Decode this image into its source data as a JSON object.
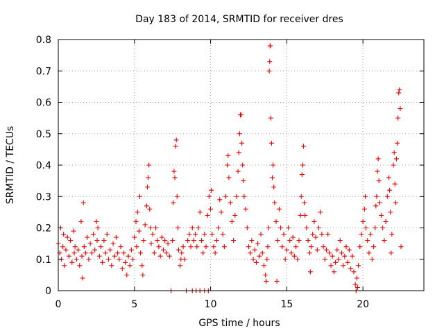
{
  "chart_data": {
    "type": "scatter",
    "title": "Day 183 of 2014, SRMTID for receiver dres",
    "xlabel": "GPS time / hours",
    "ylabel": "SRMTID / TECUs",
    "xlim": [
      0,
      24
    ],
    "ylim": [
      0,
      0.8
    ],
    "xticks": [
      0,
      5,
      10,
      15,
      20
    ],
    "xtick_labels": [
      "0",
      "5",
      "10",
      "15",
      "20"
    ],
    "yticks": [
      0,
      0.1,
      0.2,
      0.3,
      0.4,
      0.5,
      0.6,
      0.7,
      0.8
    ],
    "ytick_labels": [
      "0",
      "0.1",
      "0.2",
      "0.3",
      "0.4",
      "0.5",
      "0.6",
      "0.7",
      "0.8"
    ],
    "grid": true,
    "marker": "+",
    "color": "#e00000",
    "series": [
      {
        "name": "SRMTID",
        "points": [
          [
            0.0,
            0.15
          ],
          [
            0.1,
            0.12
          ],
          [
            0.15,
            0.2
          ],
          [
            0.2,
            0.1
          ],
          [
            0.3,
            0.14
          ],
          [
            0.35,
            0.18
          ],
          [
            0.4,
            0.08
          ],
          [
            0.5,
            0.13
          ],
          [
            0.6,
            0.17
          ],
          [
            0.7,
            0.11
          ],
          [
            0.8,
            0.16
          ],
          [
            0.9,
            0.09
          ],
          [
            1.0,
            0.19
          ],
          [
            1.05,
            0.12
          ],
          [
            1.1,
            0.14
          ],
          [
            1.2,
            0.1
          ],
          [
            1.3,
            0.13
          ],
          [
            1.4,
            0.08
          ],
          [
            1.5,
            0.22
          ],
          [
            1.55,
            0.11
          ],
          [
            1.6,
            0.04
          ],
          [
            1.65,
            0.28
          ],
          [
            1.7,
            0.14
          ],
          [
            1.8,
            0.12
          ],
          [
            1.9,
            0.17
          ],
          [
            2.0,
            0.1
          ],
          [
            2.1,
            0.15
          ],
          [
            2.2,
            0.12
          ],
          [
            2.3,
            0.18
          ],
          [
            2.4,
            0.13
          ],
          [
            2.5,
            0.22
          ],
          [
            2.55,
            0.16
          ],
          [
            2.6,
            0.2
          ],
          [
            2.7,
            0.11
          ],
          [
            2.8,
            0.14
          ],
          [
            2.9,
            0.09
          ],
          [
            3.0,
            0.16
          ],
          [
            3.1,
            0.12
          ],
          [
            3.2,
            0.18
          ],
          [
            3.3,
            0.1
          ],
          [
            3.4,
            0.13
          ],
          [
            3.5,
            0.08
          ],
          [
            3.6,
            0.15
          ],
          [
            3.7,
            0.11
          ],
          [
            3.8,
            0.17
          ],
          [
            3.9,
            0.12
          ],
          [
            4.0,
            0.1
          ],
          [
            4.1,
            0.14
          ],
          [
            4.2,
            0.07
          ],
          [
            4.3,
            0.12
          ],
          [
            4.4,
            0.09
          ],
          [
            4.5,
            0.05
          ],
          [
            4.6,
            0.11
          ],
          [
            4.7,
            0.08
          ],
          [
            4.8,
            0.13
          ],
          [
            4.9,
            0.1
          ],
          [
            5.0,
            0.17
          ],
          [
            5.1,
            0.22
          ],
          [
            5.15,
            0.14
          ],
          [
            5.2,
            0.25
          ],
          [
            5.3,
            0.19
          ],
          [
            5.35,
            0.3
          ],
          [
            5.4,
            0.12
          ],
          [
            5.5,
            0.08
          ],
          [
            5.55,
            0.05
          ],
          [
            5.6,
            0.16
          ],
          [
            5.7,
            0.21
          ],
          [
            5.8,
            0.27
          ],
          [
            5.85,
            0.33
          ],
          [
            5.9,
            0.36
          ],
          [
            5.95,
            0.4
          ],
          [
            6.0,
            0.26
          ],
          [
            6.05,
            0.2
          ],
          [
            6.1,
            0.15
          ],
          [
            6.2,
            0.18
          ],
          [
            6.3,
            0.12
          ],
          [
            6.4,
            0.2
          ],
          [
            6.5,
            0.16
          ],
          [
            6.6,
            0.14
          ],
          [
            6.7,
            0.11
          ],
          [
            6.8,
            0.17
          ],
          [
            6.9,
            0.13
          ],
          [
            7.0,
            0.16
          ],
          [
            7.1,
            0.12
          ],
          [
            7.2,
            0.15
          ],
          [
            7.3,
            0.11
          ],
          [
            7.4,
            0.0
          ],
          [
            7.5,
            0.16
          ],
          [
            7.55,
            0.28
          ],
          [
            7.6,
            0.38
          ],
          [
            7.65,
            0.36
          ],
          [
            7.7,
            0.46
          ],
          [
            7.75,
            0.48
          ],
          [
            7.8,
            0.3
          ],
          [
            7.85,
            0.2
          ],
          [
            7.9,
            0.13
          ],
          [
            8.0,
            0.08
          ],
          [
            8.05,
            0.1
          ],
          [
            8.1,
            0.12
          ],
          [
            8.2,
            0.14
          ],
          [
            8.3,
            0.1
          ],
          [
            8.4,
            0.0
          ],
          [
            8.5,
            0.16
          ],
          [
            8.6,
            0.18
          ],
          [
            8.7,
            0.14
          ],
          [
            8.8,
            0.2
          ],
          [
            8.8,
            0.0
          ],
          [
            8.9,
            0.16
          ],
          [
            9.0,
            0.18
          ],
          [
            9.05,
            0.0
          ],
          [
            9.1,
            0.14
          ],
          [
            9.2,
            0.2
          ],
          [
            9.3,
            0.25
          ],
          [
            9.3,
            0.0
          ],
          [
            9.4,
            0.16
          ],
          [
            9.5,
            0.12
          ],
          [
            9.6,
            0.18
          ],
          [
            9.6,
            0.0
          ],
          [
            9.7,
            0.14
          ],
          [
            9.8,
            0.24
          ],
          [
            9.85,
            0.0
          ],
          [
            9.9,
            0.3
          ],
          [
            10.0,
            0.26
          ],
          [
            10.05,
            0.32
          ],
          [
            10.1,
            0.18
          ],
          [
            10.2,
            0.14
          ],
          [
            10.3,
            0.12
          ],
          [
            10.4,
            0.16
          ],
          [
            10.5,
            0.2
          ],
          [
            10.6,
            0.29
          ],
          [
            10.7,
            0.25
          ],
          [
            10.8,
            0.18
          ],
          [
            10.9,
            0.14
          ],
          [
            11.0,
            0.3
          ],
          [
            11.1,
            0.4
          ],
          [
            11.15,
            0.43
          ],
          [
            11.2,
            0.36
          ],
          [
            11.3,
            0.28
          ],
          [
            11.4,
            0.22
          ],
          [
            11.5,
            0.16
          ],
          [
            11.6,
            0.24
          ],
          [
            11.7,
            0.3
          ],
          [
            11.8,
            0.38
          ],
          [
            11.85,
            0.44
          ],
          [
            11.9,
            0.5
          ],
          [
            11.95,
            0.56
          ],
          [
            12.0,
            0.56
          ],
          [
            12.05,
            0.47
          ],
          [
            12.1,
            0.4
          ],
          [
            12.15,
            0.35
          ],
          [
            12.2,
            0.3
          ],
          [
            12.3,
            0.26
          ],
          [
            12.4,
            0.2
          ],
          [
            12.5,
            0.14
          ],
          [
            12.6,
            0.12
          ],
          [
            12.7,
            0.16
          ],
          [
            12.8,
            0.1
          ],
          [
            12.9,
            0.13
          ],
          [
            13.0,
            0.09
          ],
          [
            13.1,
            0.15
          ],
          [
            13.2,
            0.11
          ],
          [
            13.3,
            0.18
          ],
          [
            13.4,
            0.12
          ],
          [
            13.5,
            0.08
          ],
          [
            13.6,
            0.05
          ],
          [
            13.65,
            0.03
          ],
          [
            13.7,
            0.1
          ],
          [
            13.75,
            0.14
          ],
          [
            13.8,
            0.2
          ],
          [
            13.85,
            0.7
          ],
          [
            13.88,
            0.73
          ],
          [
            13.9,
            0.78
          ],
          [
            13.92,
            0.78
          ],
          [
            13.95,
            0.55
          ],
          [
            14.0,
            0.47
          ],
          [
            14.05,
            0.36
          ],
          [
            14.1,
            0.4
          ],
          [
            14.15,
            0.33
          ],
          [
            14.2,
            0.28
          ],
          [
            14.3,
            0.22
          ],
          [
            14.35,
            0.03
          ],
          [
            14.4,
            0.16
          ],
          [
            14.5,
            0.26
          ],
          [
            14.6,
            0.2
          ],
          [
            14.7,
            0.14
          ],
          [
            14.8,
            0.18
          ],
          [
            14.9,
            0.1
          ],
          [
            15.0,
            0.13
          ],
          [
            15.1,
            0.2
          ],
          [
            15.2,
            0.16
          ],
          [
            15.3,
            0.12
          ],
          [
            15.4,
            0.17
          ],
          [
            15.5,
            0.11
          ],
          [
            15.6,
            0.14
          ],
          [
            15.7,
            0.1
          ],
          [
            15.8,
            0.16
          ],
          [
            15.9,
            0.24
          ],
          [
            15.95,
            0.3
          ],
          [
            16.0,
            0.37
          ],
          [
            16.05,
            0.4
          ],
          [
            16.1,
            0.46
          ],
          [
            16.15,
            0.28
          ],
          [
            16.2,
            0.24
          ],
          [
            16.3,
            0.2
          ],
          [
            16.4,
            0.16
          ],
          [
            16.5,
            0.12
          ],
          [
            16.55,
            0.06
          ],
          [
            16.6,
            0.14
          ],
          [
            16.7,
            0.18
          ],
          [
            16.8,
            0.22
          ],
          [
            16.9,
            0.17
          ],
          [
            17.0,
            0.13
          ],
          [
            17.1,
            0.2
          ],
          [
            17.2,
            0.25
          ],
          [
            17.3,
            0.18
          ],
          [
            17.4,
            0.14
          ],
          [
            17.5,
            0.1
          ],
          [
            17.6,
            0.13
          ],
          [
            17.7,
            0.18
          ],
          [
            17.8,
            0.12
          ],
          [
            17.9,
            0.08
          ],
          [
            18.0,
            0.11
          ],
          [
            18.1,
            0.06
          ],
          [
            18.2,
            0.09
          ],
          [
            18.3,
            0.13
          ],
          [
            18.4,
            0.1
          ],
          [
            18.5,
            0.16
          ],
          [
            18.6,
            0.12
          ],
          [
            18.7,
            0.08
          ],
          [
            18.8,
            0.11
          ],
          [
            18.9,
            0.14
          ],
          [
            19.0,
            0.09
          ],
          [
            19.1,
            0.13
          ],
          [
            19.2,
            0.07
          ],
          [
            19.3,
            0.11
          ],
          [
            19.4,
            0.06
          ],
          [
            19.5,
            0.02
          ],
          [
            19.55,
            0.0
          ],
          [
            19.6,
            0.04
          ],
          [
            19.65,
            0.01
          ],
          [
            19.7,
            0.08
          ],
          [
            19.8,
            0.14
          ],
          [
            19.9,
            0.18
          ],
          [
            20.0,
            0.22
          ],
          [
            20.1,
            0.26
          ],
          [
            20.15,
            0.3
          ],
          [
            20.2,
            0.2
          ],
          [
            20.3,
            0.16
          ],
          [
            20.4,
            0.12
          ],
          [
            20.5,
            0.18
          ],
          [
            20.6,
            0.1
          ],
          [
            20.7,
            0.14
          ],
          [
            20.8,
            0.2
          ],
          [
            20.85,
            0.27
          ],
          [
            20.9,
            0.3
          ],
          [
            20.95,
            0.38
          ],
          [
            21.0,
            0.42
          ],
          [
            21.05,
            0.35
          ],
          [
            21.1,
            0.28
          ],
          [
            21.2,
            0.24
          ],
          [
            21.3,
            0.2
          ],
          [
            21.4,
            0.16
          ],
          [
            21.5,
            0.22
          ],
          [
            21.6,
            0.3
          ],
          [
            21.7,
            0.36
          ],
          [
            21.75,
            0.32
          ],
          [
            21.8,
            0.25
          ],
          [
            21.85,
            0.12
          ],
          [
            21.9,
            0.18
          ],
          [
            22.0,
            0.4
          ],
          [
            22.05,
            0.44
          ],
          [
            22.1,
            0.34
          ],
          [
            22.15,
            0.28
          ],
          [
            22.2,
            0.42
          ],
          [
            22.25,
            0.47
          ],
          [
            22.3,
            0.55
          ],
          [
            22.35,
            0.63
          ],
          [
            22.4,
            0.64
          ],
          [
            22.45,
            0.58
          ],
          [
            22.5,
            0.14
          ]
        ]
      }
    ]
  }
}
